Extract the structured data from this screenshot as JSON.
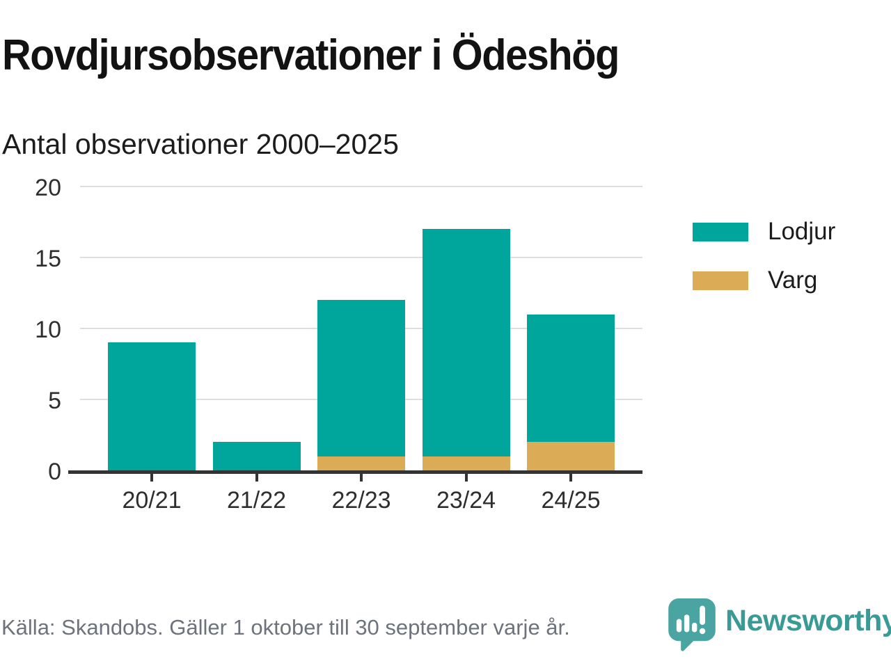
{
  "header": {
    "title": "Rovdjursobservationer i Ödeshög",
    "subtitle": "Antal observationer 2000–2025"
  },
  "chart_data": {
    "type": "bar",
    "stacked": true,
    "title": "Rovdjursobservationer i Ödeshög",
    "subtitle": "Antal observationer 2000–2025",
    "categories": [
      "20/21",
      "21/22",
      "22/23",
      "23/24",
      "24/25"
    ],
    "series": [
      {
        "name": "Lodjur",
        "color": "#00a69b",
        "values": [
          9,
          2,
          11,
          16,
          9
        ]
      },
      {
        "name": "Varg",
        "color": "#dcab55",
        "values": [
          0,
          0,
          1,
          1,
          2
        ]
      }
    ],
    "totals": [
      9,
      2,
      12,
      17,
      11
    ],
    "xlabel": "",
    "ylabel": "",
    "ylim": [
      0,
      20
    ],
    "y_ticks": [
      0,
      5,
      10,
      15,
      20
    ],
    "grid": "horizontal",
    "legend_position": "right"
  },
  "footer": {
    "source": "Källa: Skandobs. Gäller 1 oktober till 30 september varje år.",
    "brand": "Newsworthy"
  },
  "colors": {
    "lodjur": "#00a69b",
    "varg": "#dcab55",
    "axis": "#333333",
    "gridline": "#dedede",
    "tick_text": "#2e2e2e",
    "footer_text": "#6e737b",
    "logo_bubble": "#4aa4a1",
    "brand_text": "#3a9a96"
  }
}
